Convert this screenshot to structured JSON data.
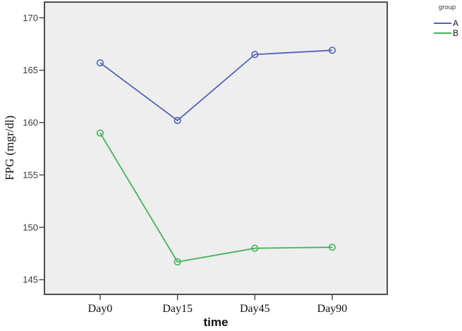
{
  "chart_data": {
    "type": "line",
    "title": "",
    "xlabel": "time",
    "ylabel": "FPG (mgr/dl)",
    "categories": [
      "Day0",
      "Day15",
      "Day45",
      "Day90"
    ],
    "series": [
      {
        "name": "A",
        "color": "#5164b8",
        "values": [
          165.7,
          160.2,
          166.5,
          166.9
        ]
      },
      {
        "name": "B",
        "color": "#44b45a",
        "values": [
          159.0,
          146.7,
          148.0,
          148.1
        ]
      }
    ],
    "yticks": [
      145,
      150,
      155,
      160,
      165,
      170
    ],
    "ylim": [
      143.6,
      171.5
    ],
    "grid": false,
    "marker": "open-circle",
    "legend": {
      "title": "group",
      "position": "top-right"
    },
    "colors": {
      "plot_background": "#eeeeee",
      "frame": "#4d4d4d",
      "tick": "#4d4d4d",
      "y_tick_label": "#3a3a3a",
      "x_tick_label": "#111111"
    }
  }
}
